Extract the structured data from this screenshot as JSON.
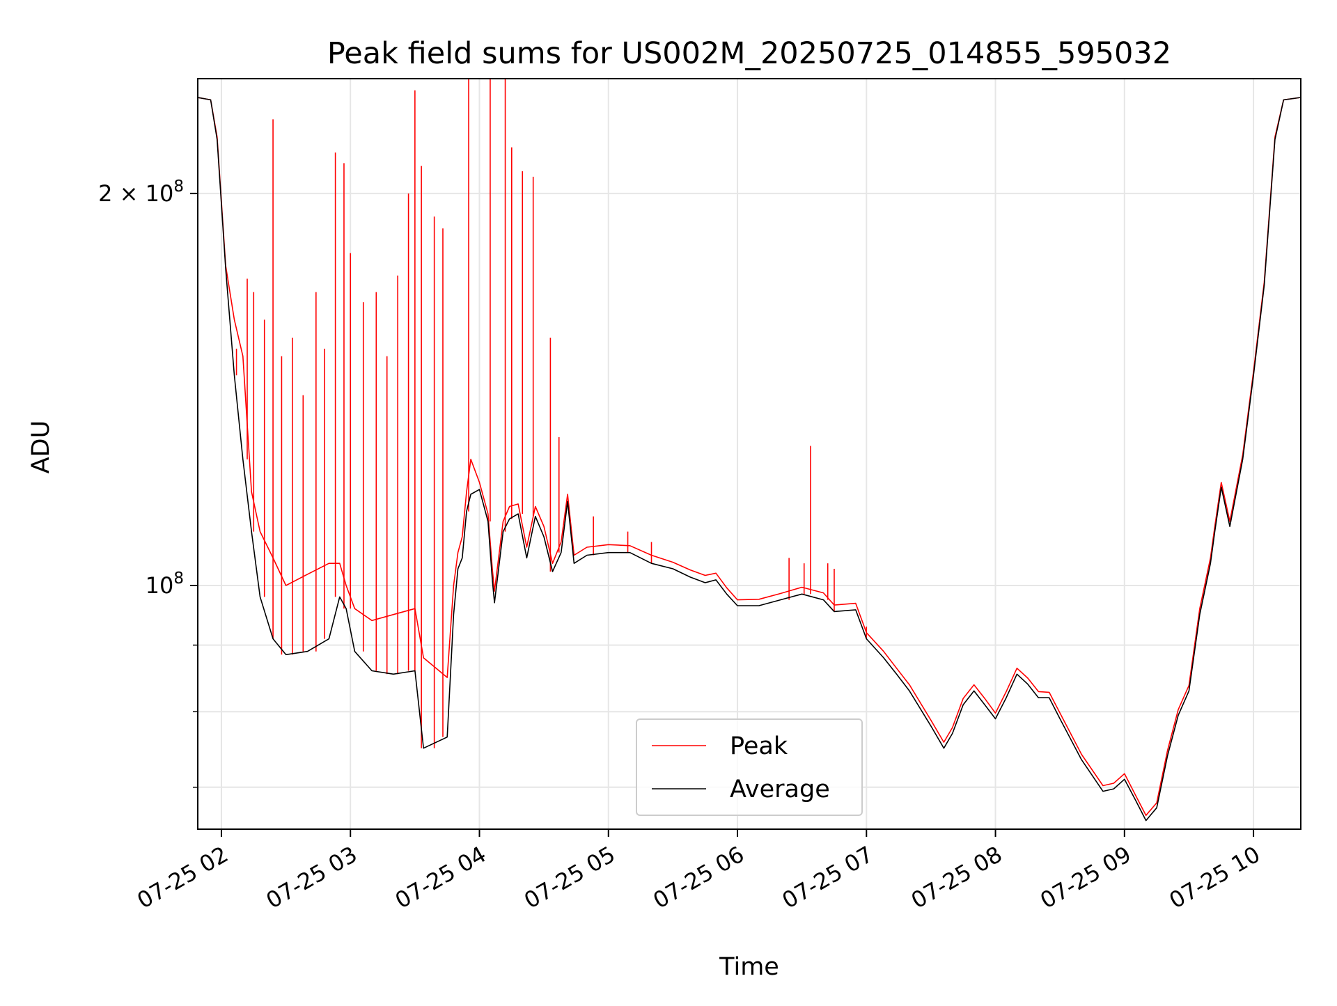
{
  "chart_data": {
    "type": "line",
    "title": "Peak field sums for US002M_20250725_014855_595032",
    "xlabel": "Time",
    "ylabel": "ADU",
    "y_scale": "log",
    "grid": true,
    "legend_position": "lower-center",
    "xlim": [
      "2025-07-25 01:49",
      "2025-07-25 10:22"
    ],
    "ylim": [
      65000000,
      245000000
    ],
    "x_ticks": [
      {
        "value": "2025-07-25 02:00",
        "label": "07-25 02"
      },
      {
        "value": "2025-07-25 03:00",
        "label": "07-25 03"
      },
      {
        "value": "2025-07-25 04:00",
        "label": "07-25 04"
      },
      {
        "value": "2025-07-25 05:00",
        "label": "07-25 05"
      },
      {
        "value": "2025-07-25 06:00",
        "label": "07-25 06"
      },
      {
        "value": "2025-07-25 07:00",
        "label": "07-25 07"
      },
      {
        "value": "2025-07-25 08:00",
        "label": "07-25 08"
      },
      {
        "value": "2025-07-25 09:00",
        "label": "07-25 09"
      },
      {
        "value": "2025-07-25 10:00",
        "label": "07-25 10"
      }
    ],
    "y_major_ticks": [
      {
        "value": 100000000,
        "base": "10",
        "exp": "8",
        "coef": ""
      },
      {
        "value": 200000000,
        "base": "10",
        "exp": "8",
        "coef": "2 × "
      }
    ],
    "y_minor_ticks": [
      70000000,
      80000000,
      90000000
    ],
    "series": [
      {
        "name": "Average",
        "color": "#000000",
        "points": [
          [
            "2025-07-25 01:49",
            237000000
          ],
          [
            "2025-07-25 01:55",
            236000000
          ],
          [
            "2025-07-25 01:58",
            220000000
          ],
          [
            "2025-07-25 02:02",
            175000000
          ],
          [
            "2025-07-25 02:06",
            145000000
          ],
          [
            "2025-07-25 02:10",
            125000000
          ],
          [
            "2025-07-25 02:14",
            110000000
          ],
          [
            "2025-07-25 02:18",
            98000000
          ],
          [
            "2025-07-25 02:24",
            91000000
          ],
          [
            "2025-07-25 02:30",
            88500000
          ],
          [
            "2025-07-25 02:40",
            89000000
          ],
          [
            "2025-07-25 02:50",
            91000000
          ],
          [
            "2025-07-25 02:55",
            98000000
          ],
          [
            "2025-07-25 02:58",
            96000000
          ],
          [
            "2025-07-25 03:02",
            89000000
          ],
          [
            "2025-07-25 03:10",
            86000000
          ],
          [
            "2025-07-25 03:20",
            85500000
          ],
          [
            "2025-07-25 03:30",
            86000000
          ],
          [
            "2025-07-25 03:34",
            75000000
          ],
          [
            "2025-07-25 03:45",
            76500000
          ],
          [
            "2025-07-25 03:48",
            95000000
          ],
          [
            "2025-07-25 03:50",
            103000000
          ],
          [
            "2025-07-25 03:52",
            105000000
          ],
          [
            "2025-07-25 03:54",
            114000000
          ],
          [
            "2025-07-25 03:56",
            117500000
          ],
          [
            "2025-07-25 04:00",
            118500000
          ],
          [
            "2025-07-25 04:04",
            112000000
          ],
          [
            "2025-07-25 04:06",
            101000000
          ],
          [
            "2025-07-25 04:07",
            97000000
          ],
          [
            "2025-07-25 04:11",
            110000000
          ],
          [
            "2025-07-25 04:14",
            112500000
          ],
          [
            "2025-07-25 04:18",
            113500000
          ],
          [
            "2025-07-25 04:22",
            105000000
          ],
          [
            "2025-07-25 04:26",
            113000000
          ],
          [
            "2025-07-25 04:30",
            109000000
          ],
          [
            "2025-07-25 04:34",
            102500000
          ],
          [
            "2025-07-25 04:38",
            106000000
          ],
          [
            "2025-07-25 04:41",
            116000000
          ],
          [
            "2025-07-25 04:44",
            104000000
          ],
          [
            "2025-07-25 04:50",
            105500000
          ],
          [
            "2025-07-25 05:00",
            106000000
          ],
          [
            "2025-07-25 05:10",
            106000000
          ],
          [
            "2025-07-25 05:20",
            104000000
          ],
          [
            "2025-07-25 05:30",
            103000000
          ],
          [
            "2025-07-25 05:38",
            101500000
          ],
          [
            "2025-07-25 05:45",
            100500000
          ],
          [
            "2025-07-25 05:50",
            101000000
          ],
          [
            "2025-07-25 05:55",
            98500000
          ],
          [
            "2025-07-25 06:00",
            96500000
          ],
          [
            "2025-07-25 06:10",
            96500000
          ],
          [
            "2025-07-25 06:20",
            97500000
          ],
          [
            "2025-07-25 06:30",
            98500000
          ],
          [
            "2025-07-25 06:40",
            97500000
          ],
          [
            "2025-07-25 06:45",
            95500000
          ],
          [
            "2025-07-25 06:55",
            95800000
          ],
          [
            "2025-07-25 07:00",
            91000000
          ],
          [
            "2025-07-25 07:08",
            88000000
          ],
          [
            "2025-07-25 07:14",
            85500000
          ],
          [
            "2025-07-25 07:20",
            83000000
          ],
          [
            "2025-07-25 07:30",
            78000000
          ],
          [
            "2025-07-25 07:36",
            75000000
          ],
          [
            "2025-07-25 07:40",
            77000000
          ],
          [
            "2025-07-25 07:45",
            81000000
          ],
          [
            "2025-07-25 07:50",
            83000000
          ],
          [
            "2025-07-25 07:55",
            81000000
          ],
          [
            "2025-07-25 08:00",
            79000000
          ],
          [
            "2025-07-25 08:05",
            82000000
          ],
          [
            "2025-07-25 08:10",
            85500000
          ],
          [
            "2025-07-25 08:15",
            84000000
          ],
          [
            "2025-07-25 08:20",
            82000000
          ],
          [
            "2025-07-25 08:25",
            82000000
          ],
          [
            "2025-07-25 08:30",
            79000000
          ],
          [
            "2025-07-25 08:40",
            73500000
          ],
          [
            "2025-07-25 08:50",
            69500000
          ],
          [
            "2025-07-25 08:55",
            69800000
          ],
          [
            "2025-07-25 09:00",
            71000000
          ],
          [
            "2025-07-25 09:05",
            68500000
          ],
          [
            "2025-07-25 09:10",
            66000000
          ],
          [
            "2025-07-25 09:15",
            67500000
          ],
          [
            "2025-07-25 09:20",
            74000000
          ],
          [
            "2025-07-25 09:25",
            79500000
          ],
          [
            "2025-07-25 09:30",
            83000000
          ],
          [
            "2025-07-25 09:35",
            95000000
          ],
          [
            "2025-07-25 09:40",
            104000000
          ],
          [
            "2025-07-25 09:42",
            110000000
          ],
          [
            "2025-07-25 09:45",
            119000000
          ],
          [
            "2025-07-25 09:49",
            111000000
          ],
          [
            "2025-07-25 09:55",
            125000000
          ],
          [
            "2025-07-25 10:00",
            145000000
          ],
          [
            "2025-07-25 10:05",
            170000000
          ],
          [
            "2025-07-25 10:10",
            220000000
          ],
          [
            "2025-07-25 10:14",
            236000000
          ],
          [
            "2025-07-25 10:22",
            237000000
          ]
        ]
      },
      {
        "name": "Peak",
        "color": "#ff0000",
        "points": [
          [
            "2025-07-25 01:49",
            237000000
          ],
          [
            "2025-07-25 01:55",
            236000000
          ],
          [
            "2025-07-25 01:58",
            221000000
          ],
          [
            "2025-07-25 02:02",
            176000000
          ],
          [
            "2025-07-25 02:06",
            160000000
          ],
          [
            "2025-07-25 02:10",
            150000000
          ],
          [
            "2025-07-25 02:14",
            118000000
          ],
          [
            "2025-07-25 02:18",
            110000000
          ],
          [
            "2025-07-25 02:24",
            105000000
          ],
          [
            "2025-07-25 02:30",
            100000000
          ],
          [
            "2025-07-25 02:40",
            102000000
          ],
          [
            "2025-07-25 02:50",
            104000000
          ],
          [
            "2025-07-25 02:55",
            104000000
          ],
          [
            "2025-07-25 02:58",
            100000000
          ],
          [
            "2025-07-25 03:02",
            96000000
          ],
          [
            "2025-07-25 03:10",
            94000000
          ],
          [
            "2025-07-25 03:20",
            95000000
          ],
          [
            "2025-07-25 03:30",
            96000000
          ],
          [
            "2025-07-25 03:34",
            88000000
          ],
          [
            "2025-07-25 03:45",
            85000000
          ],
          [
            "2025-07-25 03:48",
            100000000
          ],
          [
            "2025-07-25 03:50",
            106000000
          ],
          [
            "2025-07-25 03:52",
            109000000
          ],
          [
            "2025-07-25 03:54",
            118000000
          ],
          [
            "2025-07-25 03:56",
            125000000
          ],
          [
            "2025-07-25 04:00",
            120000000
          ],
          [
            "2025-07-25 04:04",
            113500000
          ],
          [
            "2025-07-25 04:06",
            103000000
          ],
          [
            "2025-07-25 04:07",
            99000000
          ],
          [
            "2025-07-25 04:11",
            112000000
          ],
          [
            "2025-07-25 04:14",
            115000000
          ],
          [
            "2025-07-25 04:18",
            115500000
          ],
          [
            "2025-07-25 04:22",
            107000000
          ],
          [
            "2025-07-25 04:26",
            115000000
          ],
          [
            "2025-07-25 04:30",
            111000000
          ],
          [
            "2025-07-25 04:34",
            104000000
          ],
          [
            "2025-07-25 04:38",
            108000000
          ],
          [
            "2025-07-25 04:41",
            117500000
          ],
          [
            "2025-07-25 04:44",
            105500000
          ],
          [
            "2025-07-25 04:50",
            107000000
          ],
          [
            "2025-07-25 05:00",
            107500000
          ],
          [
            "2025-07-25 05:10",
            107300000
          ],
          [
            "2025-07-25 05:20",
            105500000
          ],
          [
            "2025-07-25 05:30",
            104200000
          ],
          [
            "2025-07-25 05:38",
            102800000
          ],
          [
            "2025-07-25 05:45",
            101800000
          ],
          [
            "2025-07-25 05:50",
            102200000
          ],
          [
            "2025-07-25 05:55",
            99600000
          ],
          [
            "2025-07-25 06:00",
            97500000
          ],
          [
            "2025-07-25 06:10",
            97600000
          ],
          [
            "2025-07-25 06:20",
            98600000
          ],
          [
            "2025-07-25 06:30",
            99700000
          ],
          [
            "2025-07-25 06:40",
            98700000
          ],
          [
            "2025-07-25 06:45",
            96600000
          ],
          [
            "2025-07-25 06:55",
            96900000
          ],
          [
            "2025-07-25 07:00",
            92000000
          ],
          [
            "2025-07-25 07:08",
            89000000
          ],
          [
            "2025-07-25 07:14",
            86400000
          ],
          [
            "2025-07-25 07:20",
            83900000
          ],
          [
            "2025-07-25 07:30",
            78800000
          ],
          [
            "2025-07-25 07:36",
            75800000
          ],
          [
            "2025-07-25 07:40",
            77800000
          ],
          [
            "2025-07-25 07:45",
            81900000
          ],
          [
            "2025-07-25 07:50",
            83900000
          ],
          [
            "2025-07-25 07:55",
            81900000
          ],
          [
            "2025-07-25 08:00",
            79800000
          ],
          [
            "2025-07-25 08:05",
            82900000
          ],
          [
            "2025-07-25 08:10",
            86400000
          ],
          [
            "2025-07-25 08:15",
            84900000
          ],
          [
            "2025-07-25 08:20",
            82900000
          ],
          [
            "2025-07-25 08:25",
            82800000
          ],
          [
            "2025-07-25 08:30",
            79800000
          ],
          [
            "2025-07-25 08:40",
            74200000
          ],
          [
            "2025-07-25 08:50",
            70200000
          ],
          [
            "2025-07-25 08:55",
            70500000
          ],
          [
            "2025-07-25 09:00",
            71700000
          ],
          [
            "2025-07-25 09:05",
            69100000
          ],
          [
            "2025-07-25 09:10",
            66600000
          ],
          [
            "2025-07-25 09:15",
            68100000
          ],
          [
            "2025-07-25 09:20",
            74700000
          ],
          [
            "2025-07-25 09:25",
            80300000
          ],
          [
            "2025-07-25 09:30",
            83800000
          ],
          [
            "2025-07-25 09:35",
            96000000
          ],
          [
            "2025-07-25 09:40",
            105000000
          ],
          [
            "2025-07-25 09:42",
            111000000
          ],
          [
            "2025-07-25 09:45",
            120000000
          ],
          [
            "2025-07-25 09:49",
            112000000
          ],
          [
            "2025-07-25 09:55",
            126000000
          ],
          [
            "2025-07-25 10:00",
            146000000
          ],
          [
            "2025-07-25 10:05",
            171000000
          ],
          [
            "2025-07-25 10:10",
            221000000
          ],
          [
            "2025-07-25 10:14",
            236000000
          ],
          [
            "2025-07-25 10:22",
            237000000
          ]
        ],
        "spikes": [
          [
            "2025-07-25 02:04",
            175000000
          ],
          [
            "2025-07-25 02:07",
            152000000
          ],
          [
            "2025-07-25 02:12",
            172000000
          ],
          [
            "2025-07-25 02:15",
            168000000
          ],
          [
            "2025-07-25 02:20",
            160000000
          ],
          [
            "2025-07-25 02:24",
            228000000
          ],
          [
            "2025-07-25 02:28",
            150000000
          ],
          [
            "2025-07-25 02:33",
            155000000
          ],
          [
            "2025-07-25 02:38",
            140000000
          ],
          [
            "2025-07-25 02:44",
            168000000
          ],
          [
            "2025-07-25 02:48",
            152000000
          ],
          [
            "2025-07-25 02:53",
            215000000
          ],
          [
            "2025-07-25 02:57",
            211000000
          ],
          [
            "2025-07-25 03:00",
            180000000
          ],
          [
            "2025-07-25 03:06",
            165000000
          ],
          [
            "2025-07-25 03:12",
            168000000
          ],
          [
            "2025-07-25 03:17",
            150000000
          ],
          [
            "2025-07-25 03:22",
            173000000
          ],
          [
            "2025-07-25 03:27",
            200000000
          ],
          [
            "2025-07-25 03:30",
            240000000
          ],
          [
            "2025-07-25 03:33",
            210000000
          ],
          [
            "2025-07-25 03:39",
            192000000
          ],
          [
            "2025-07-25 03:43",
            188000000
          ],
          [
            "2025-07-25 03:55",
            245000000
          ],
          [
            "2025-07-25 04:05",
            245000000
          ],
          [
            "2025-07-25 04:12",
            245000000
          ],
          [
            "2025-07-25 04:15",
            217000000
          ],
          [
            "2025-07-25 04:20",
            208000000
          ],
          [
            "2025-07-25 04:25",
            206000000
          ],
          [
            "2025-07-25 04:33",
            155000000
          ],
          [
            "2025-07-25 04:37",
            130000000
          ],
          [
            "2025-07-25 04:53",
            113000000
          ],
          [
            "2025-07-25 05:09",
            110000000
          ],
          [
            "2025-07-25 05:20",
            108000000
          ],
          [
            "2025-07-25 06:24",
            105000000
          ],
          [
            "2025-07-25 06:31",
            104000000
          ],
          [
            "2025-07-25 06:34",
            128000000
          ],
          [
            "2025-07-25 06:42",
            104000000
          ],
          [
            "2025-07-25 06:45",
            103000000
          ],
          [
            "2025-07-25 07:00",
            93000000
          ]
        ]
      }
    ]
  }
}
